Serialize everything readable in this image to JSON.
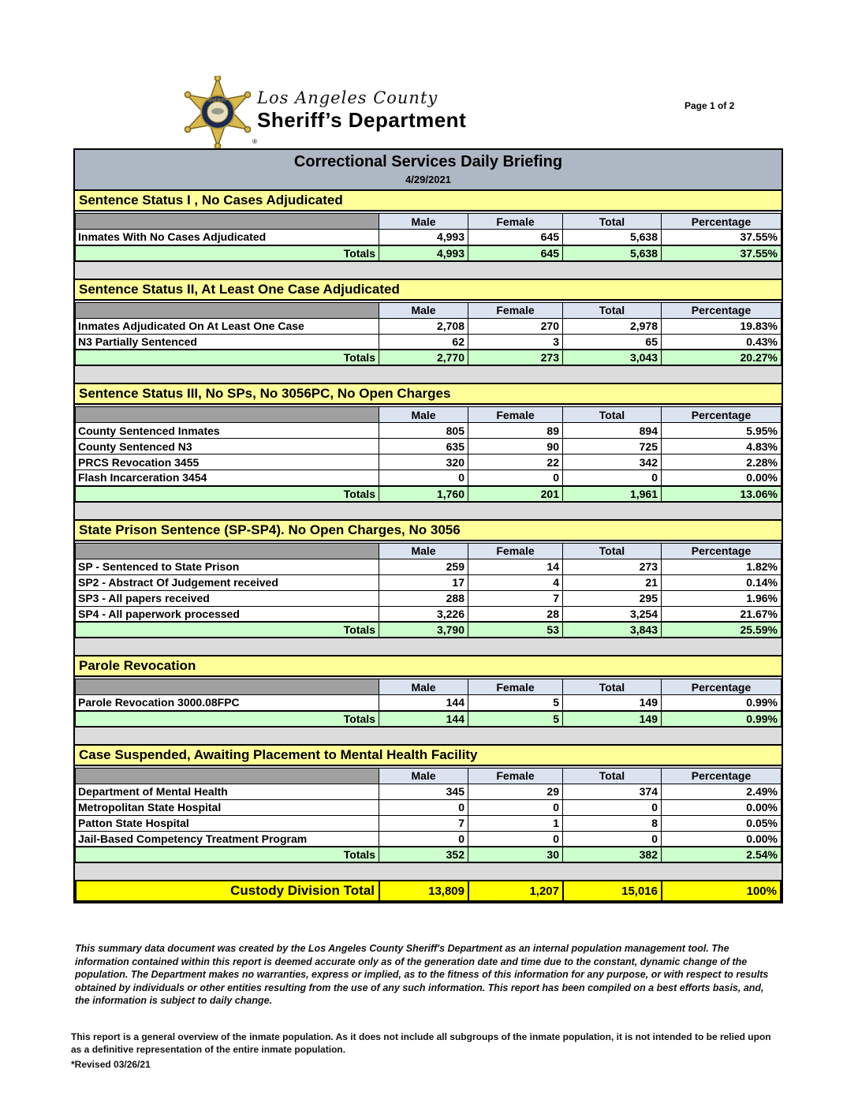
{
  "page": {
    "page_number": "Page 1 of 2"
  },
  "header": {
    "agency_location": "Los Angeles County",
    "agency_name": "Sheriff’s Department",
    "badge_icon": "sheriff-star-badge",
    "registered_mark": "®"
  },
  "report": {
    "title": "Correctional Services Daily Briefing",
    "date": "4/29/2021"
  },
  "columns": [
    "Male",
    "Female",
    "Total",
    "Percentage"
  ],
  "totals_label": "Totals",
  "sections": [
    {
      "title": "Sentence Status I , No Cases Adjudicated",
      "rows": [
        {
          "label": "Inmates With No Cases Adjudicated",
          "male": "4,993",
          "female": "645",
          "total": "5,638",
          "percentage": "37.55%"
        }
      ],
      "totals": {
        "male": "4,993",
        "female": "645",
        "total": "5,638",
        "percentage": "37.55%"
      }
    },
    {
      "title": "Sentence Status II, At Least One Case Adjudicated",
      "rows": [
        {
          "label": "Inmates Adjudicated On At Least One Case",
          "male": "2,708",
          "female": "270",
          "total": "2,978",
          "percentage": "19.83%"
        },
        {
          "label": "N3 Partially Sentenced",
          "male": "62",
          "female": "3",
          "total": "65",
          "percentage": "0.43%"
        }
      ],
      "totals": {
        "male": "2,770",
        "female": "273",
        "total": "3,043",
        "percentage": "20.27%"
      }
    },
    {
      "title": "Sentence Status III, No SPs, No 3056PC, No Open Charges",
      "rows": [
        {
          "label": "County Sentenced Inmates",
          "male": "805",
          "female": "89",
          "total": "894",
          "percentage": "5.95%"
        },
        {
          "label": "County Sentenced N3",
          "male": "635",
          "female": "90",
          "total": "725",
          "percentage": "4.83%"
        },
        {
          "label": "PRCS Revocation 3455",
          "male": "320",
          "female": "22",
          "total": "342",
          "percentage": "2.28%"
        },
        {
          "label": "Flash Incarceration 3454",
          "male": "0",
          "female": "0",
          "total": "0",
          "percentage": "0.00%"
        }
      ],
      "totals": {
        "male": "1,760",
        "female": "201",
        "total": "1,961",
        "percentage": "13.06%"
      }
    },
    {
      "title": "State Prison Sentence (SP-SP4). No Open Charges, No 3056",
      "rows": [
        {
          "label": "SP - Sentenced to State Prison",
          "male": "259",
          "female": "14",
          "total": "273",
          "percentage": "1.82%"
        },
        {
          "label": "SP2 - Abstract Of Judgement received",
          "male": "17",
          "female": "4",
          "total": "21",
          "percentage": "0.14%"
        },
        {
          "label": "SP3 - All papers received",
          "male": "288",
          "female": "7",
          "total": "295",
          "percentage": "1.96%"
        },
        {
          "label": "SP4 - All paperwork processed",
          "male": "3,226",
          "female": "28",
          "total": "3,254",
          "percentage": "21.67%"
        }
      ],
      "totals": {
        "male": "3,790",
        "female": "53",
        "total": "3,843",
        "percentage": "25.59%"
      }
    },
    {
      "title": "Parole Revocation",
      "rows": [
        {
          "label": "Parole Revocation 3000.08FPC",
          "male": "144",
          "female": "5",
          "total": "149",
          "percentage": "0.99%"
        }
      ],
      "totals": {
        "male": "144",
        "female": "5",
        "total": "149",
        "percentage": "0.99%"
      }
    },
    {
      "title": "Case Suspended, Awaiting Placement to Mental Health Facility",
      "rows": [
        {
          "label": "Department of Mental Health",
          "male": "345",
          "female": "29",
          "total": "374",
          "percentage": "2.49%"
        },
        {
          "label": "Metropolitan State Hospital",
          "male": "0",
          "female": "0",
          "total": "0",
          "percentage": "0.00%"
        },
        {
          "label": "Patton State Hospital",
          "male": "7",
          "female": "1",
          "total": "8",
          "percentage": "0.05%"
        },
        {
          "label": "Jail-Based Competency Treatment Program",
          "male": "0",
          "female": "0",
          "total": "0",
          "percentage": "0.00%"
        }
      ],
      "totals": {
        "male": "352",
        "female": "30",
        "total": "382",
        "percentage": "2.54%"
      }
    }
  ],
  "grand_total": {
    "label": "Custody Division Total",
    "male": "13,809",
    "female": "1,207",
    "total": "15,016",
    "percentage": "100%"
  },
  "disclaimer": "This summary data document was created by the Los Angeles County Sheriff's Department as an internal population management tool.  The information contained within this report is deemed accurate only as of the generation date and time due to the constant, dynamic change of the population.  The Department makes no warranties, express or implied, as to the fitness of this information for any purpose, or with respect to results obtained by individuals or other entities resulting from the use of any such information.  This report has been compiled on a best efforts basis, and, the information is subject to daily change.",
  "footer_note": "This report is a general overview of the inmate population.  As it does not include all subgroups of the inmate population, it is not intended to be relied upon as a definitive representation of the entire inmate population.",
  "revision": "*Revised 03/26/21",
  "colors": {
    "title_bar": "#aeb7c4",
    "section_header": "#ffff99",
    "column_header": "#dbe3f0",
    "label_spacer": "#a0a0a0",
    "totals_row": "#ccffcc",
    "grand_total_row": "#ffff00",
    "canvas_gap": "#dcdcdc",
    "badge_gold": "#d9b94c",
    "badge_navy": "#1b2a55"
  }
}
